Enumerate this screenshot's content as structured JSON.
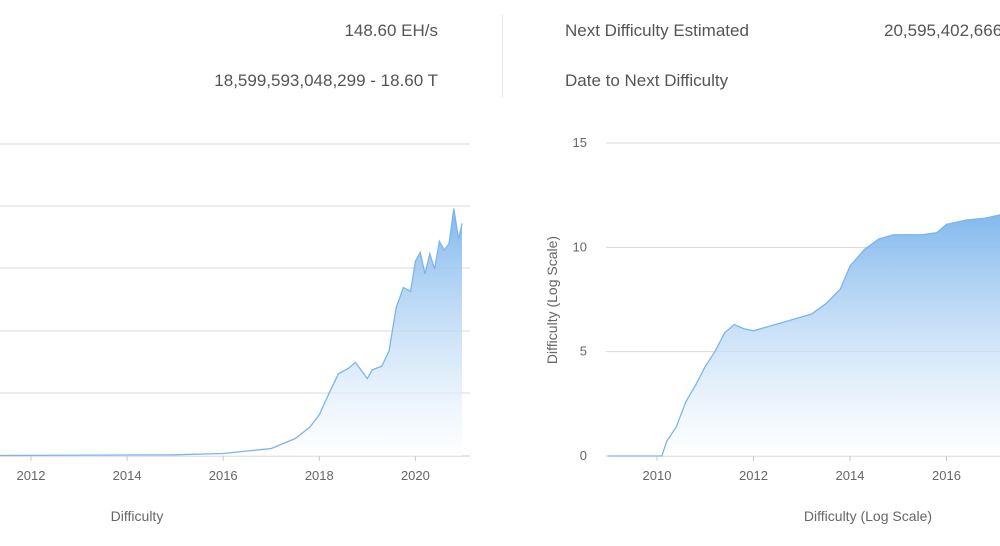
{
  "stats": {
    "hashrate_value": "148.60 EH/s",
    "difficulty_value_exact": "18,599,593,048,299",
    "difficulty_value_sep": " - ",
    "difficulty_value_short": "18.60 T",
    "next_difficulty_label": "Next Difficulty Estimated",
    "next_difficulty_value": "20,595,402,666",
    "date_next_label": "Date to Next Difficulty"
  },
  "colors": {
    "line": "#7cb5ec",
    "area_top": "#7cb5ec",
    "area_bottom": "#ffffff",
    "grid": "#d8d8d8"
  },
  "chart_data": [
    {
      "type": "area",
      "title": "",
      "xlabel": "Difficulty",
      "ylabel": "",
      "x_ticks": [
        "2012",
        "2014",
        "2016",
        "2018",
        "2020"
      ],
      "grid": true,
      "x": [
        2009.0,
        2015.0,
        2016.0,
        2016.5,
        2017.0,
        2017.5,
        2017.8,
        2018.0,
        2018.2,
        2018.4,
        2018.6,
        2018.75,
        2018.85,
        2019.0,
        2019.1,
        2019.3,
        2019.45,
        2019.6,
        2019.75,
        2019.9,
        2020.0,
        2020.1,
        2020.2,
        2020.3,
        2020.4,
        2020.5,
        2020.6,
        2020.7,
        2020.8,
        2020.9,
        2020.97
      ],
      "y": [
        0,
        0.1,
        0.2,
        0.4,
        0.6,
        1.4,
        2.3,
        3.3,
        5.0,
        6.6,
        7.0,
        7.5,
        7.0,
        6.2,
        6.9,
        7.2,
        8.4,
        11.9,
        13.5,
        13.2,
        15.6,
        16.3,
        14.6,
        16.2,
        15.0,
        17.2,
        16.5,
        17.0,
        19.8,
        17.4,
        18.6
      ],
      "y_range": [
        0,
        25
      ]
    },
    {
      "type": "area",
      "title": "",
      "xlabel": "Difficulty (Log Scale)",
      "ylabel": "Difficulty (Log Scale)",
      "yscale": "log",
      "x_ticks": [
        "2010",
        "2012",
        "2014",
        "2016"
      ],
      "y_ticks": [
        "0",
        "5",
        "10",
        "15"
      ],
      "ylim": [
        0,
        15
      ],
      "grid": true,
      "x": [
        2009.0,
        2010.1,
        2010.2,
        2010.4,
        2010.6,
        2010.8,
        2011.0,
        2011.2,
        2011.4,
        2011.6,
        2011.8,
        2012.0,
        2012.3,
        2012.6,
        2012.9,
        2013.2,
        2013.5,
        2013.8,
        2014.0,
        2014.3,
        2014.6,
        2014.9,
        2015.2,
        2015.5,
        2015.8,
        2016.0,
        2016.4,
        2016.8,
        2017.2
      ],
      "y": [
        0,
        0,
        0.7,
        1.4,
        2.6,
        3.4,
        4.3,
        5.0,
        5.9,
        6.3,
        6.1,
        6.0,
        6.2,
        6.4,
        6.6,
        6.8,
        7.3,
        8.0,
        9.1,
        9.9,
        10.4,
        10.6,
        10.6,
        10.6,
        10.7,
        11.1,
        11.3,
        11.4,
        11.6
      ]
    }
  ]
}
